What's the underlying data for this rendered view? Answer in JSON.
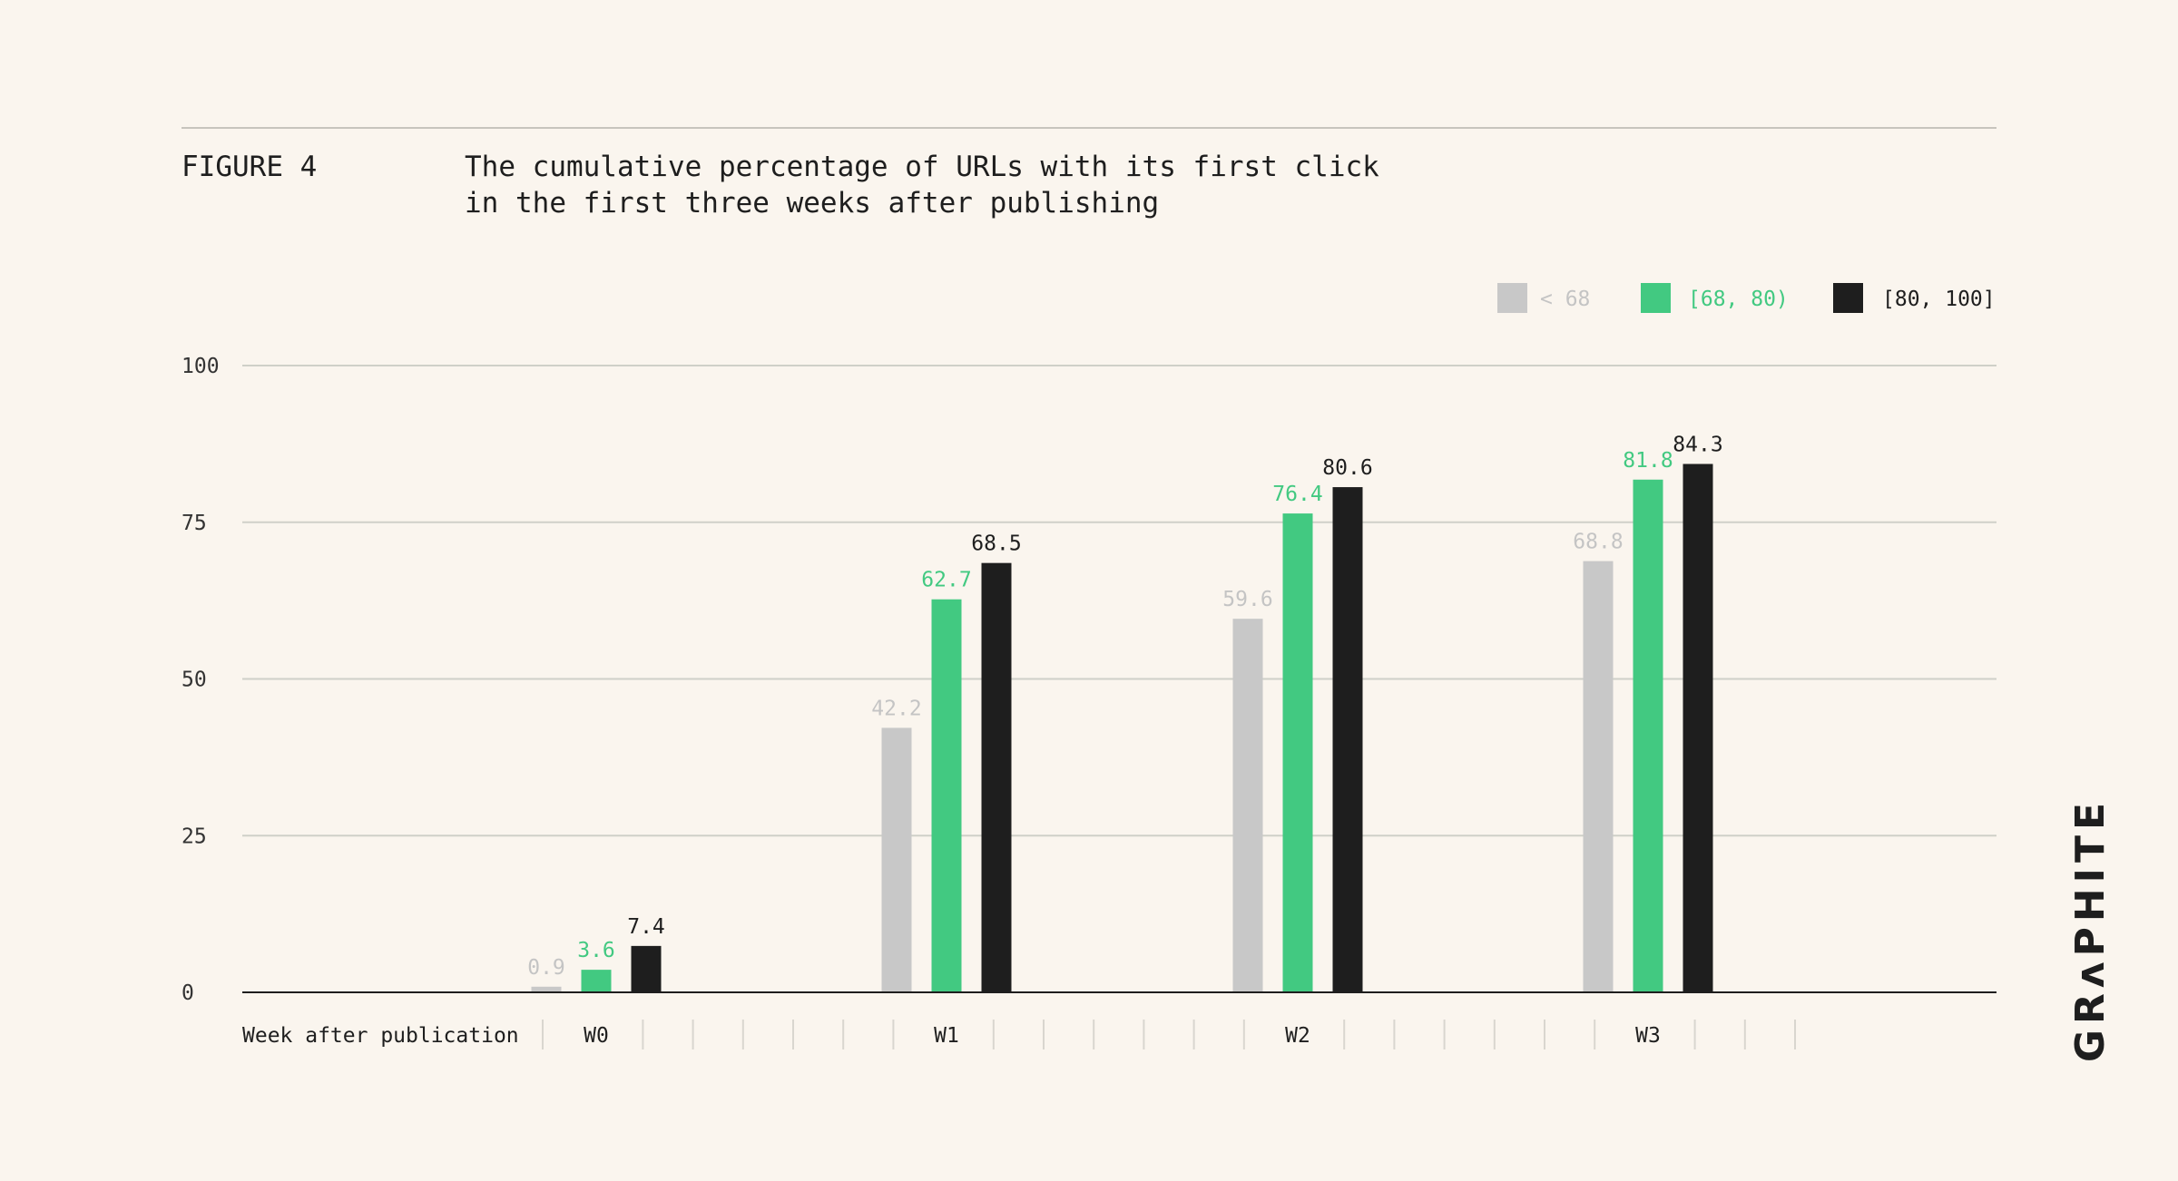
{
  "figure": {
    "label": "FIGURE 4",
    "title_lines": [
      "The cumulative percentage of URLs with its first click",
      "in the first three weeks after publishing"
    ]
  },
  "logo": {
    "text": "GRʌPHITE"
  },
  "colors": {
    "background": "#faf5ee",
    "grid": "#cfd0c8",
    "axis": "#1e1e1e"
  },
  "chart_data": {
    "type": "bar",
    "title": "The cumulative percentage of URLs with its first click in the first three weeks after publishing",
    "xlabel": "Week after publication",
    "ylabel": "",
    "ylim": [
      0,
      100
    ],
    "yticks": [
      0,
      25,
      50,
      75,
      100
    ],
    "grid": true,
    "legend_position": "top-right",
    "categories": [
      "W0",
      "W1",
      "W2",
      "W3"
    ],
    "series": [
      {
        "name": "< 68",
        "color": "#c8c8c8",
        "label_color": "#c4c4c4",
        "values": [
          0.9,
          42.2,
          59.6,
          68.8
        ]
      },
      {
        "name": "[68, 80)",
        "color": "#42c981",
        "label_color": "#42c981",
        "values": [
          3.6,
          62.7,
          76.4,
          81.8
        ]
      },
      {
        "name": "[80, 100]",
        "color": "#1e1e1e",
        "label_color": "#1e1e1e",
        "values": [
          7.4,
          68.5,
          80.6,
          84.3
        ]
      }
    ]
  }
}
